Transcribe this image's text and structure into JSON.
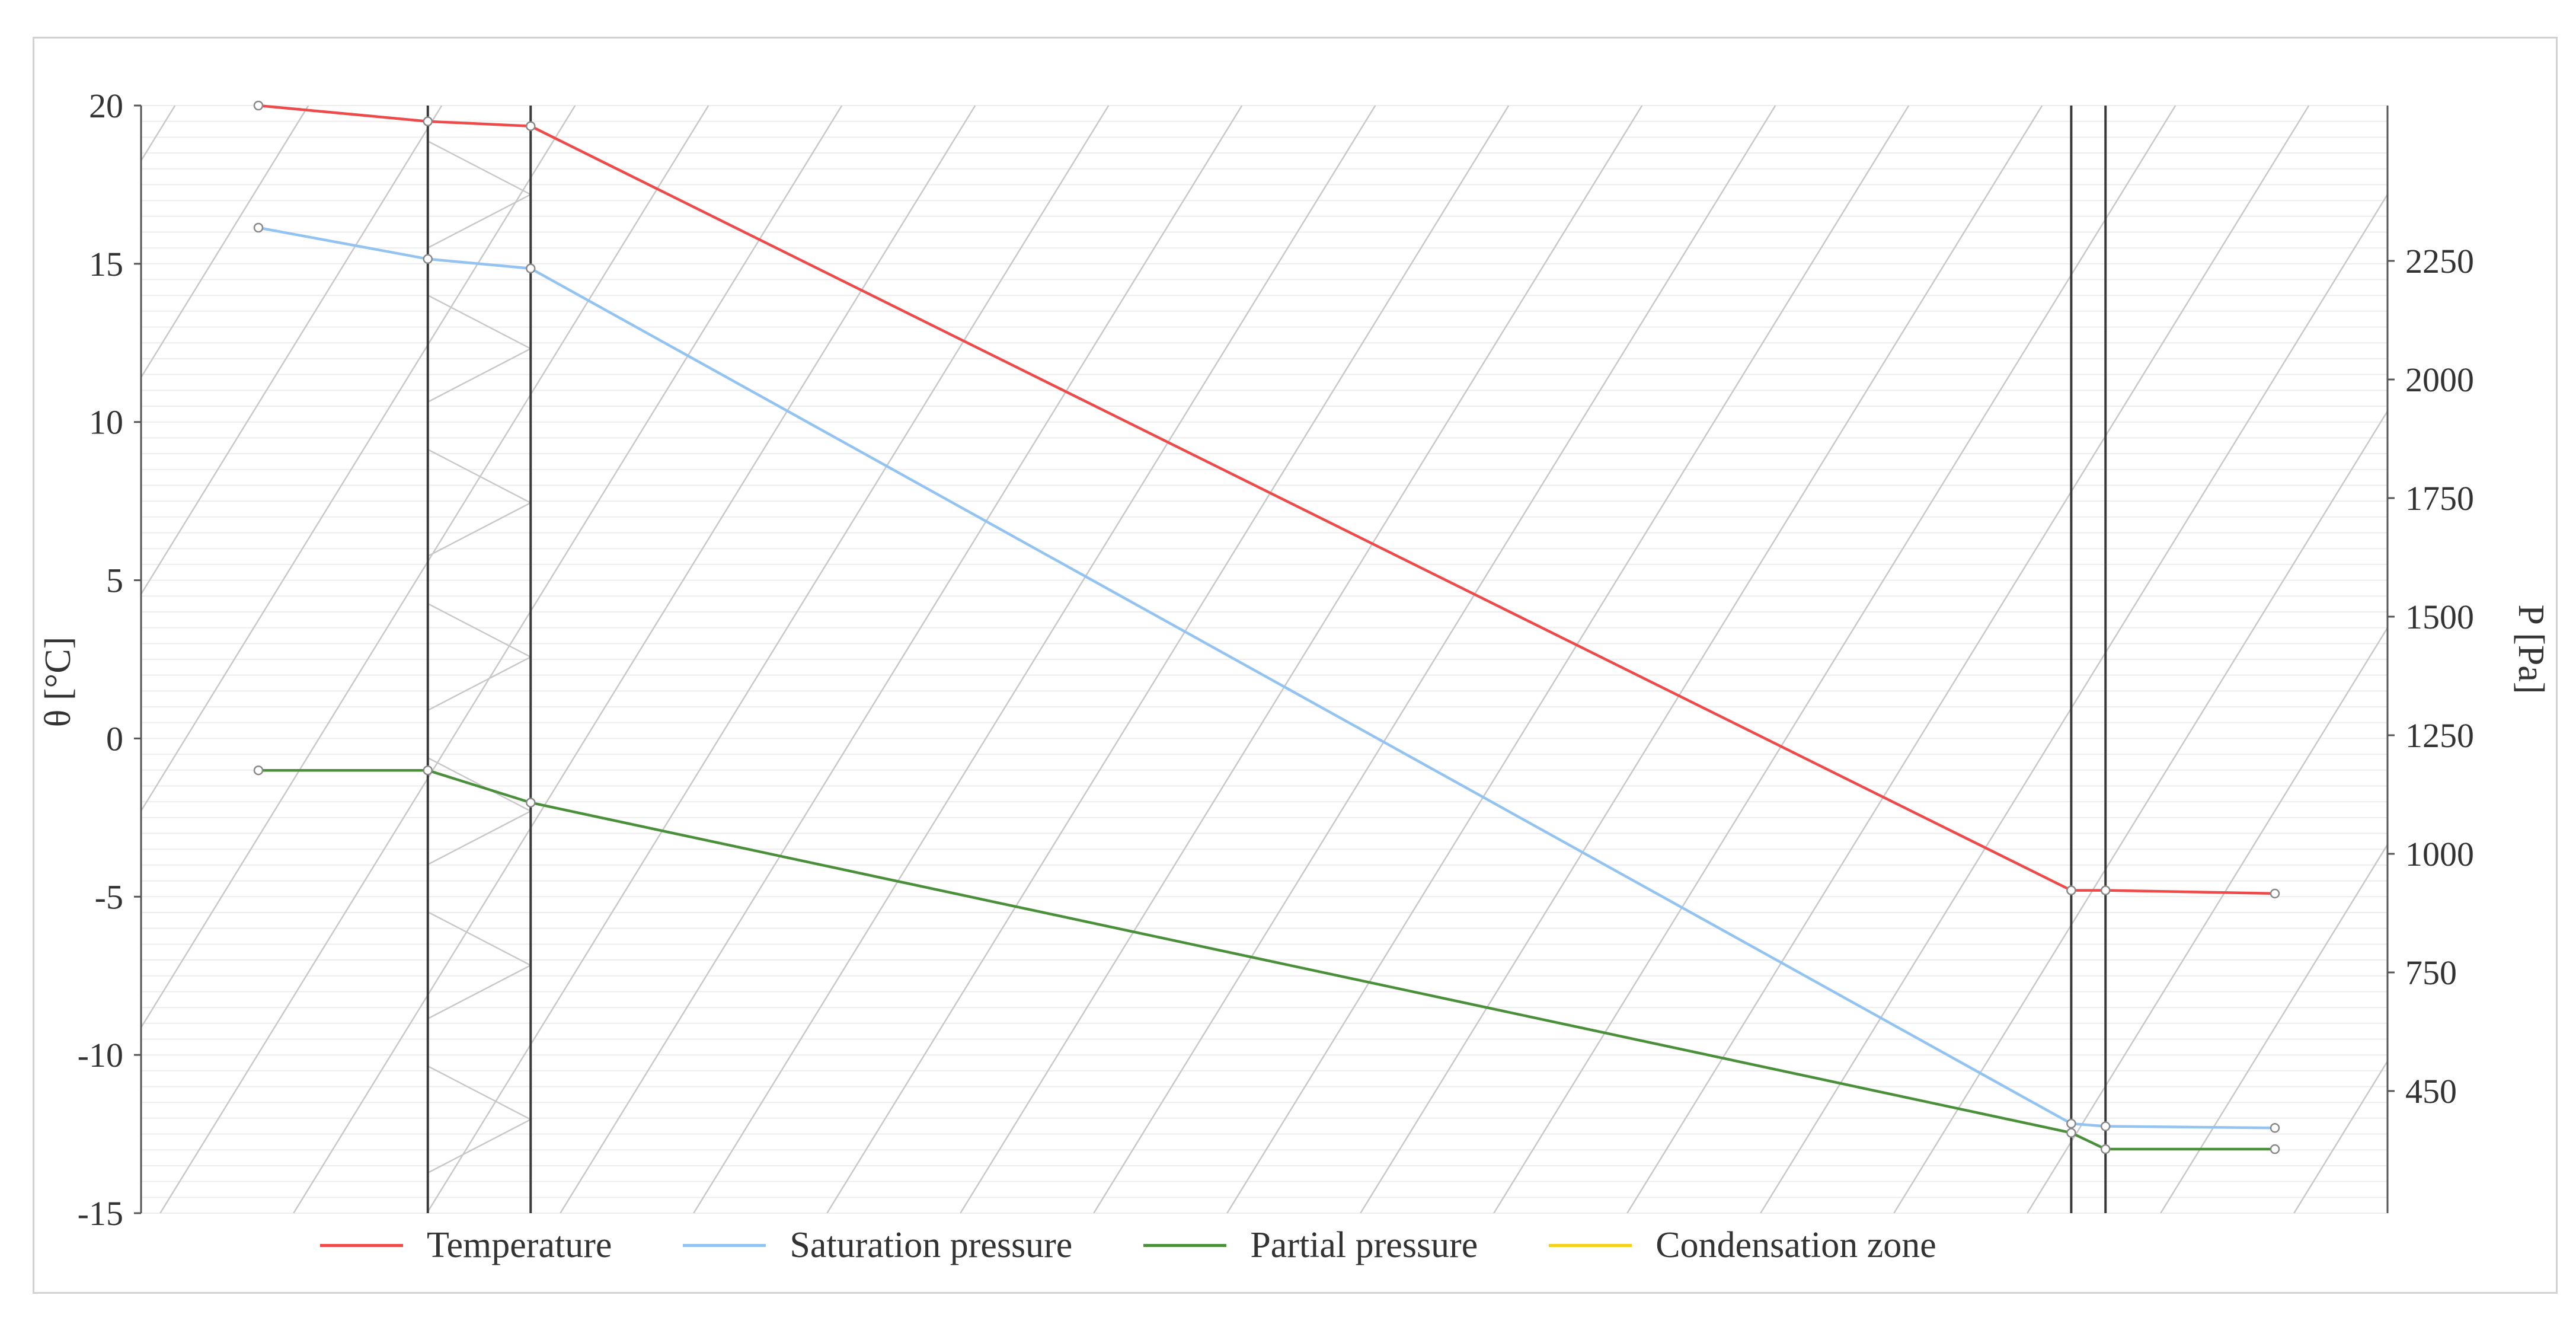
{
  "chart_data": {
    "type": "line",
    "title": "",
    "y_left": {
      "label": "θ [°C]",
      "range": [
        -15,
        20
      ],
      "ticks": [
        "20",
        "15",
        "10",
        "5",
        "0",
        "-5",
        "-10",
        "-15"
      ],
      "tick_values": [
        20,
        15,
        10,
        5,
        0,
        -5,
        -10,
        -15
      ]
    },
    "y_right": {
      "label": "P [Pa]",
      "ticks": [
        "2250",
        "2000",
        "1750",
        "1500",
        "1250",
        "1000",
        "750",
        "450"
      ],
      "tick_values": [
        2250,
        2000,
        1750,
        1500,
        1250,
        1000,
        750,
        450
      ]
    },
    "x_range": [
      0,
      1000
    ],
    "layer_boundaries": [
      84,
      135,
      899,
      916
    ],
    "hatched_layer": [
      135,
      899
    ],
    "series": [
      {
        "name": "Temperature",
        "color": "#ee4a4a",
        "axis": "left",
        "points": [
          [
            0,
            20.0
          ],
          [
            84,
            19.5
          ],
          [
            135,
            19.35
          ],
          [
            899,
            -4.8
          ],
          [
            916,
            -4.8
          ],
          [
            1000,
            -4.9
          ]
        ]
      },
      {
        "name": "Saturation pressure",
        "color": "#93c3f0",
        "axis": "right",
        "points": [
          [
            0,
            2320
          ],
          [
            84,
            2254
          ],
          [
            135,
            2234
          ],
          [
            899,
            390
          ],
          [
            916,
            385
          ],
          [
            1000,
            382
          ]
        ]
      },
      {
        "name": "Partial pressure",
        "color": "#4a8f3a",
        "axis": "right",
        "points": [
          [
            0,
            1176
          ],
          [
            84,
            1176
          ],
          [
            135,
            1108
          ],
          [
            899,
            373
          ],
          [
            916,
            343
          ],
          [
            1000,
            343
          ]
        ]
      },
      {
        "name": "Condensation zone",
        "color": "#f5d11a",
        "axis": "right",
        "points": []
      }
    ]
  },
  "legend": [
    {
      "label": "Temperature",
      "color": "#ee4a4a"
    },
    {
      "label": "Saturation pressure",
      "color": "#93c3f0"
    },
    {
      "label": "Partial pressure",
      "color": "#4a8f3a"
    },
    {
      "label": "Condensation zone",
      "color": "#f5d11a"
    }
  ]
}
